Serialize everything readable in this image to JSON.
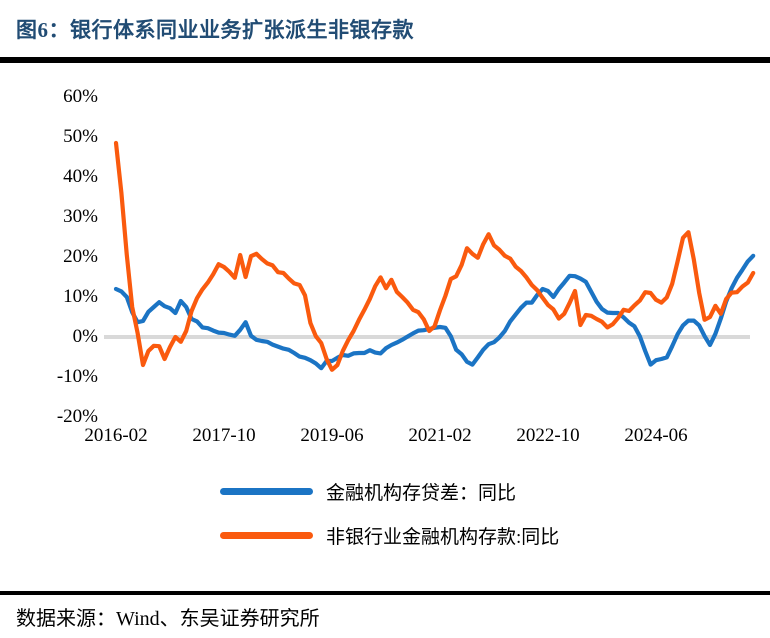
{
  "page": {
    "title": "图6：银行体系同业业务扩张派生非银存款",
    "title_color": "#214C74",
    "source_note": "数据来源：Wind、东吴证券研究所"
  },
  "chart_data": {
    "type": "line",
    "title": "",
    "xlabel": "",
    "ylabel": "",
    "x_start": "2016-02",
    "frequency": "monthly",
    "n_points": 119,
    "ylim": [
      -20,
      60
    ],
    "grid": "zero-line-only",
    "zero_line_color": "#D9D9D9",
    "legend_position": "bottom",
    "y_ticks": [
      {
        "label": "60%",
        "value": 60
      },
      {
        "label": "50%",
        "value": 50
      },
      {
        "label": "40%",
        "value": 40
      },
      {
        "label": "30%",
        "value": 30
      },
      {
        "label": "20%",
        "value": 20
      },
      {
        "label": "10%",
        "value": 10
      },
      {
        "label": "0%",
        "value": 0
      },
      {
        "label": "-10%",
        "value": -10
      },
      {
        "label": "-20%",
        "value": -20
      }
    ],
    "x_ticks": [
      {
        "label": "2016-02",
        "month_index": 0
      },
      {
        "label": "2017-10",
        "month_index": 20
      },
      {
        "label": "2019-06",
        "month_index": 40
      },
      {
        "label": "2021-02",
        "month_index": 60
      },
      {
        "label": "2022-10",
        "month_index": 80
      },
      {
        "label": "2024-06",
        "month_index": 100
      }
    ],
    "series": [
      {
        "name": "金融机构存贷差：同比",
        "color": "#1B74C4",
        "values": [
          12,
          11.4,
          10,
          6.2,
          3.7,
          4,
          6.3,
          7.5,
          8.7,
          7.7,
          7.2,
          6,
          9,
          7.5,
          4.5,
          3.9,
          2.4,
          2.2,
          1.6,
          1.1,
          1,
          0.6,
          0.3,
          1.8,
          3.7,
          0.3,
          -0.7,
          -1,
          -1.2,
          -1.9,
          -2.4,
          -2.9,
          -3.2,
          -4,
          -4.9,
          -5.2,
          -5.8,
          -6.6,
          -7.8,
          -6,
          -6,
          -5.2,
          -4.5,
          -4.7,
          -4.1,
          -4,
          -4,
          -3.3,
          -3.9,
          -4.1,
          -2.8,
          -2,
          -1.4,
          -0.7,
          0.1,
          0.9,
          1.6,
          1.7,
          2,
          2.3,
          2.5,
          2.3,
          0.2,
          -3.2,
          -4.3,
          -6.2,
          -6.9,
          -5.1,
          -3.2,
          -1.8,
          -1.3,
          -0.1,
          1.5,
          3.9,
          5.6,
          7.3,
          8.6,
          8.6,
          10.5,
          12,
          11.5,
          10,
          12,
          13.6,
          15.3,
          15.2,
          14.6,
          13.8,
          11.3,
          8.8,
          7,
          6.1,
          6,
          6,
          4.9,
          3.6,
          2.7,
          0.2,
          -3.5,
          -6.9,
          -5.8,
          -5.5,
          -5.1,
          -2.3,
          0.7,
          2.9,
          4.1,
          4.1,
          2.9,
          0.2,
          -2,
          0.8,
          4.6,
          8.9,
          12.2,
          14.8,
          16.8,
          18.9,
          20.3
        ]
      },
      {
        "name": "非银行业金融机构存款:同比",
        "color": "#FA5A0E",
        "values": [
          48.5,
          36,
          20.5,
          7.5,
          1,
          -7,
          -3.5,
          -2.2,
          -2.3,
          -5.5,
          -2.5,
          0,
          -1.2,
          1.5,
          6.5,
          9.7,
          11.9,
          13.6,
          15.7,
          18.2,
          17.5,
          16.3,
          14.8,
          20.5,
          15,
          20.2,
          20.8,
          19.5,
          18.4,
          17.9,
          16.2,
          16,
          14.6,
          13.4,
          13,
          10.4,
          3.5,
          0.2,
          -1.5,
          -5.5,
          -8.2,
          -7,
          -3.5,
          -0.8,
          1.5,
          4.3,
          6.8,
          9.5,
          12.7,
          14.9,
          12.2,
          14.3,
          11.3,
          10,
          8.6,
          6.8,
          6.2,
          4.4,
          1.5,
          2.7,
          6.7,
          10.3,
          14.5,
          15.2,
          18,
          22.2,
          20.8,
          19.8,
          23.2,
          25.7,
          22.9,
          21.8,
          20.3,
          19.6,
          17.6,
          16.5,
          14.9,
          13,
          11.7,
          9.8,
          8,
          6.9,
          4.6,
          5.8,
          8.5,
          11.5,
          3,
          5.5,
          5.3,
          4.5,
          3.8,
          2.4,
          3.2,
          4.8,
          6.8,
          6.5,
          7.9,
          9.1,
          11.2,
          11,
          9.3,
          8.6,
          9.9,
          13.3,
          18.9,
          24.8,
          26.2,
          19.4,
          11,
          4.3,
          5,
          7.8,
          5.8,
          9.5,
          11.1,
          11.2,
          12.6,
          13.6,
          16
        ]
      }
    ]
  }
}
